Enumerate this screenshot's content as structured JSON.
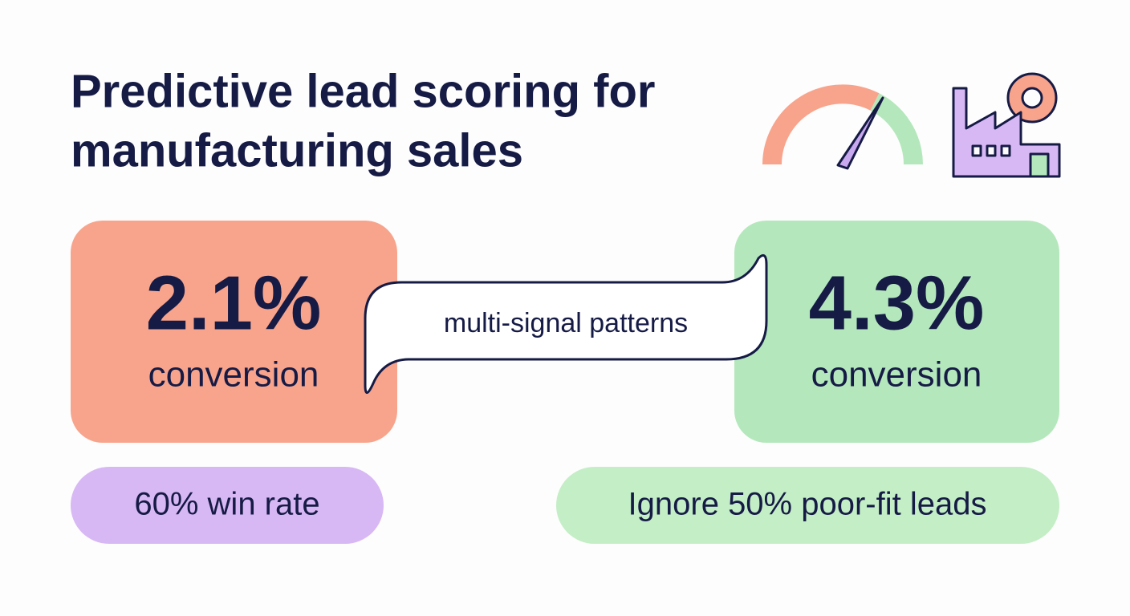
{
  "header": {
    "title_lines": [
      "Predictive lead scoring for",
      "manufacturing sales"
    ]
  },
  "cards": [
    {
      "value": "2.1%",
      "label": "conversion"
    },
    {
      "value": "4.3%",
      "label": "conversion"
    }
  ],
  "bubble": {
    "text": "multi-signal patterns"
  },
  "pills": [
    "60% win rate",
    "Ignore 50% poor-fit leads"
  ]
}
